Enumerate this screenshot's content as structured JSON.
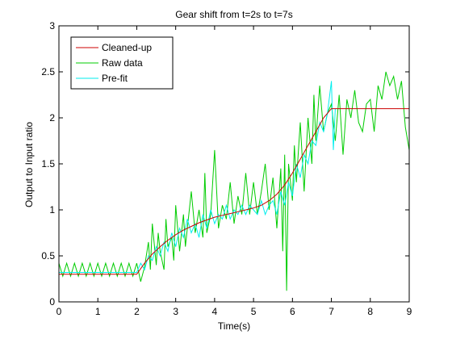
{
  "chart_data": {
    "type": "line",
    "title": "Gear shift from t=2s to t=7s",
    "xlabel": "Time(s)",
    "ylabel": "Output to Input ratio",
    "xlim": [
      0,
      9
    ],
    "ylim": [
      0,
      3
    ],
    "xticks": [
      0,
      1,
      2,
      3,
      4,
      5,
      6,
      7,
      8,
      9
    ],
    "yticks": [
      0,
      0.5,
      1,
      1.5,
      2,
      2.5,
      3
    ],
    "xtick_labels": [
      "0",
      "1",
      "2",
      "3",
      "4",
      "5",
      "6",
      "7",
      "8",
      "9"
    ],
    "ytick_labels": [
      "0",
      "0.5",
      "1",
      "1.5",
      "2",
      "2.5",
      "3"
    ],
    "grid": false,
    "legend_position": "top-left",
    "series": [
      {
        "name": "Raw data",
        "color": "#00cc00",
        "x": [
          0,
          0.1,
          0.2,
          0.3,
          0.4,
          0.5,
          0.6,
          0.7,
          0.8,
          0.9,
          1.0,
          1.1,
          1.2,
          1.3,
          1.4,
          1.5,
          1.6,
          1.7,
          1.8,
          1.9,
          2.0,
          2.1,
          2.2,
          2.3,
          2.35,
          2.4,
          2.5,
          2.55,
          2.6,
          2.7,
          2.75,
          2.8,
          2.9,
          2.95,
          3.0,
          3.1,
          3.2,
          3.25,
          3.3,
          3.4,
          3.5,
          3.6,
          3.7,
          3.75,
          3.8,
          3.9,
          4.0,
          4.1,
          4.2,
          4.3,
          4.4,
          4.5,
          4.6,
          4.7,
          4.8,
          4.9,
          5.0,
          5.1,
          5.2,
          5.3,
          5.4,
          5.5,
          5.6,
          5.7,
          5.75,
          5.8,
          5.85,
          5.9,
          6.0,
          6.05,
          6.1,
          6.2,
          6.3,
          6.4,
          6.5,
          6.55,
          6.6,
          6.7,
          6.8,
          6.9,
          7.0,
          7.1,
          7.2,
          7.3,
          7.4,
          7.5,
          7.6,
          7.7,
          7.8,
          7.9,
          8.0,
          8.1,
          8.2,
          8.3,
          8.4,
          8.5,
          8.6,
          8.7,
          8.8,
          8.9,
          9.0
        ],
        "y": [
          0.42,
          0.28,
          0.42,
          0.28,
          0.42,
          0.28,
          0.42,
          0.28,
          0.42,
          0.28,
          0.42,
          0.28,
          0.42,
          0.28,
          0.42,
          0.28,
          0.42,
          0.28,
          0.42,
          0.28,
          0.42,
          0.22,
          0.38,
          0.65,
          0.35,
          0.85,
          0.4,
          0.75,
          0.55,
          0.35,
          0.9,
          0.6,
          0.7,
          0.45,
          1.05,
          0.55,
          0.95,
          0.6,
          0.8,
          1.2,
          0.75,
          1.0,
          0.7,
          1.4,
          0.75,
          0.95,
          1.65,
          0.8,
          1.05,
          0.9,
          1.3,
          0.85,
          1.15,
          0.95,
          1.4,
          0.95,
          1.3,
          0.95,
          1.2,
          1.5,
          1.0,
          1.35,
          0.8,
          1.45,
          0.55,
          1.6,
          0.12,
          1.5,
          1.1,
          1.7,
          1.3,
          1.95,
          1.2,
          2.0,
          1.5,
          2.25,
          1.75,
          2.35,
          1.85,
          2.05,
          2.15,
          1.75,
          2.25,
          1.6,
          2.2,
          2.0,
          2.3,
          1.95,
          1.85,
          2.15,
          2.2,
          1.85,
          2.35,
          2.2,
          2.5,
          2.35,
          2.45,
          2.2,
          2.4,
          1.9,
          1.65
        ]
      },
      {
        "name": "Pre-fit",
        "color": "#00eeee",
        "x": [
          0,
          0.5,
          1.0,
          1.5,
          2.0,
          2.1,
          2.2,
          2.3,
          2.4,
          2.5,
          2.6,
          2.7,
          2.8,
          2.9,
          3.0,
          3.1,
          3.2,
          3.3,
          3.4,
          3.5,
          3.6,
          3.7,
          3.8,
          3.9,
          4.0,
          4.1,
          4.2,
          4.3,
          4.4,
          4.5,
          4.6,
          4.7,
          4.8,
          4.9,
          5.0,
          5.1,
          5.2,
          5.3,
          5.4,
          5.5,
          5.6,
          5.7,
          5.8,
          5.9,
          6.0,
          6.1,
          6.2,
          6.3,
          6.4,
          6.5,
          6.6,
          6.7,
          6.8,
          6.9,
          7.0,
          7.05,
          7.1
        ],
        "y": [
          0.32,
          0.32,
          0.32,
          0.32,
          0.32,
          0.42,
          0.35,
          0.5,
          0.45,
          0.6,
          0.5,
          0.65,
          0.55,
          0.75,
          0.6,
          0.8,
          0.7,
          0.9,
          0.75,
          0.85,
          0.7,
          0.95,
          0.8,
          1.0,
          0.85,
          0.95,
          0.9,
          1.05,
          0.9,
          1.0,
          0.95,
          1.05,
          0.95,
          1.05,
          1.0,
          0.95,
          1.1,
          0.95,
          1.05,
          1.1,
          0.95,
          1.2,
          1.05,
          1.3,
          1.15,
          1.5,
          1.35,
          1.6,
          1.5,
          1.75,
          1.7,
          1.95,
          1.85,
          2.05,
          2.4,
          1.65,
          2.1
        ]
      },
      {
        "name": "Cleaned-up",
        "color": "#cc0000",
        "x": [
          0,
          2.0,
          2.2,
          2.4,
          2.6,
          2.8,
          3.0,
          3.2,
          3.4,
          3.6,
          3.8,
          4.0,
          4.2,
          4.4,
          4.6,
          4.8,
          5.0,
          5.2,
          5.4,
          5.6,
          5.8,
          6.0,
          6.2,
          6.4,
          6.6,
          6.8,
          7.0,
          9.0
        ],
        "y": [
          0.3,
          0.3,
          0.42,
          0.52,
          0.6,
          0.67,
          0.73,
          0.78,
          0.82,
          0.86,
          0.89,
          0.92,
          0.94,
          0.96,
          0.98,
          1.0,
          1.02,
          1.05,
          1.1,
          1.17,
          1.27,
          1.4,
          1.55,
          1.7,
          1.85,
          2.0,
          2.1,
          2.1
        ]
      }
    ],
    "legend_order": [
      "Cleaned-up",
      "Raw data",
      "Pre-fit"
    ]
  }
}
